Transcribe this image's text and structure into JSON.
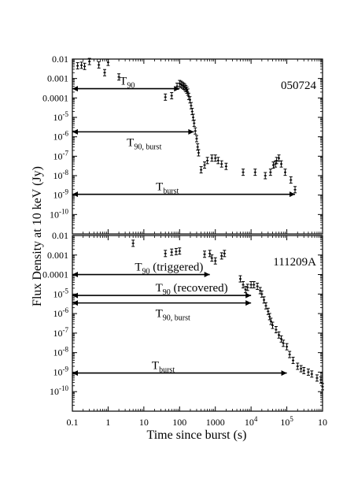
{
  "chart_data": {
    "type": "scatter",
    "xlabel": "Time since burst (s)",
    "ylabel": "Flux Density at 10 keV (Jy)",
    "x_scale": "log",
    "y_scale": "log",
    "xlim": [
      0.1,
      1000000
    ],
    "ylim": [
      1e-11,
      0.01
    ],
    "x_ticks": [
      "0.1",
      "1",
      "10",
      "100",
      "1000",
      "10^4",
      "10^5",
      "10"
    ],
    "y_ticks": [
      "0.01",
      "0.001",
      "0.0001",
      "10^-5",
      "10^-6",
      "10^-7",
      "10^-8",
      "10^-9",
      "10^-10"
    ],
    "panels": [
      {
        "label": "050724",
        "points": [
          [
            0.14,
            0.0045
          ],
          [
            0.18,
            0.0048
          ],
          [
            0.22,
            0.0042
          ],
          [
            0.3,
            0.0075
          ],
          [
            0.55,
            0.005
          ],
          [
            0.8,
            0.002
          ],
          [
            1.0,
            0.0068
          ],
          [
            2.0,
            0.0012
          ],
          [
            40,
            0.00011
          ],
          [
            60,
            0.00013
          ],
          [
            85,
            0.0004
          ],
          [
            100,
            0.00055
          ],
          [
            110,
            0.0005
          ],
          [
            120,
            0.00045
          ],
          [
            130,
            0.0004
          ],
          [
            140,
            0.00035
          ],
          [
            150,
            0.0003
          ],
          [
            160,
            0.00025
          ],
          [
            170,
            0.0002
          ],
          [
            180,
            0.00012
          ],
          [
            195,
            8e-05
          ],
          [
            210,
            4e-05
          ],
          [
            225,
            2e-05
          ],
          [
            240,
            1e-05
          ],
          [
            255,
            5e-06
          ],
          [
            275,
            2e-06
          ],
          [
            300,
            8e-07
          ],
          [
            320,
            3e-07
          ],
          [
            340,
            1.5e-07
          ],
          [
            400,
            2e-08
          ],
          [
            500,
            3.5e-08
          ],
          [
            600,
            6e-08
          ],
          [
            800,
            8e-08
          ],
          [
            1000,
            8e-08
          ],
          [
            1200,
            6e-08
          ],
          [
            1500,
            4e-08
          ],
          [
            2000,
            3e-08
          ],
          [
            6000,
            1.5e-08
          ],
          [
            13000,
            1.5e-08
          ],
          [
            25000,
            1e-08
          ],
          [
            35000,
            1.5e-08
          ],
          [
            42000,
            3.5e-08
          ],
          [
            48000,
            4e-08
          ],
          [
            52000,
            6e-08
          ],
          [
            60000,
            8e-08
          ],
          [
            70000,
            4e-08
          ],
          [
            90000,
            1.5e-08
          ],
          [
            130000,
            6e-09
          ],
          [
            170000,
            1.9e-09
          ]
        ],
        "intervals": [
          {
            "label": "T90",
            "label_main": "T",
            "label_sub": "90",
            "start": 0.1,
            "end": 100,
            "y": 0.0003
          },
          {
            "label": "T90, burst",
            "label_main": "T",
            "label_sub": "90, burst",
            "start": 0.1,
            "end": 250,
            "y": 1.8e-06
          },
          {
            "label": "Tburst",
            "label_main": "T",
            "label_sub": "burst",
            "start": 0.1,
            "end": 170000,
            "y": 1.1e-09
          }
        ]
      },
      {
        "label": "111209A",
        "points": [
          [
            5,
            0.004
          ],
          [
            40,
            0.0012
          ],
          [
            60,
            0.0014
          ],
          [
            80,
            0.0015
          ],
          [
            100,
            0.0016
          ],
          [
            500,
            0.0011
          ],
          [
            700,
            0.0012
          ],
          [
            800,
            0.0007
          ],
          [
            1000,
            0.0005
          ],
          [
            1500,
            0.0009
          ],
          [
            1800,
            0.0012
          ],
          [
            5000,
            6e-05
          ],
          [
            6000,
            3e-05
          ],
          [
            7000,
            1.7e-05
          ],
          [
            8000,
            2.2e-05
          ],
          [
            10000,
            3e-05
          ],
          [
            12000,
            3e-05
          ],
          [
            15000,
            2.5e-05
          ],
          [
            18000,
            1.5e-05
          ],
          [
            20000,
            1e-05
          ],
          [
            23000,
            5e-06
          ],
          [
            26000,
            2.5e-06
          ],
          [
            30000,
            1.3e-06
          ],
          [
            33000,
            7e-07
          ],
          [
            36000,
            4e-07
          ],
          [
            40000,
            2.5e-07
          ],
          [
            50000,
            1.5e-07
          ],
          [
            60000,
            8e-08
          ],
          [
            70000,
            5e-08
          ],
          [
            80000,
            3e-08
          ],
          [
            100000,
            2e-08
          ],
          [
            120000,
            8e-09
          ],
          [
            150000,
            4e-09
          ],
          [
            200000,
            2e-09
          ],
          [
            250000,
            1.5e-09
          ],
          [
            300000,
            1.2e-09
          ],
          [
            400000,
            1e-09
          ],
          [
            500000,
            8e-10
          ],
          [
            700000,
            5e-10
          ],
          [
            900000,
            4e-10
          ],
          [
            1000000,
            1.8e-10
          ]
        ],
        "intervals": [
          {
            "label": "T90 (triggered)",
            "label_main": "T",
            "label_sub": "90",
            "label_tail": " (triggered)",
            "start": 0.1,
            "end": 700,
            "y": 0.0001
          },
          {
            "label": "T90 (recovered)",
            "label_main": "T",
            "label_sub": "90",
            "label_tail": " (recovered)",
            "start": 0.1,
            "end": 10000,
            "y": 8.5e-06
          },
          {
            "label": "T90, burst",
            "label_main": "T",
            "label_sub": "90, burst",
            "start": 0.1,
            "end": 10000,
            "y": 3.5e-06
          },
          {
            "label": "Tburst",
            "label_main": "T",
            "label_sub": "burst",
            "start": 0.1,
            "end": 100000,
            "y": 9e-10
          }
        ]
      }
    ]
  }
}
